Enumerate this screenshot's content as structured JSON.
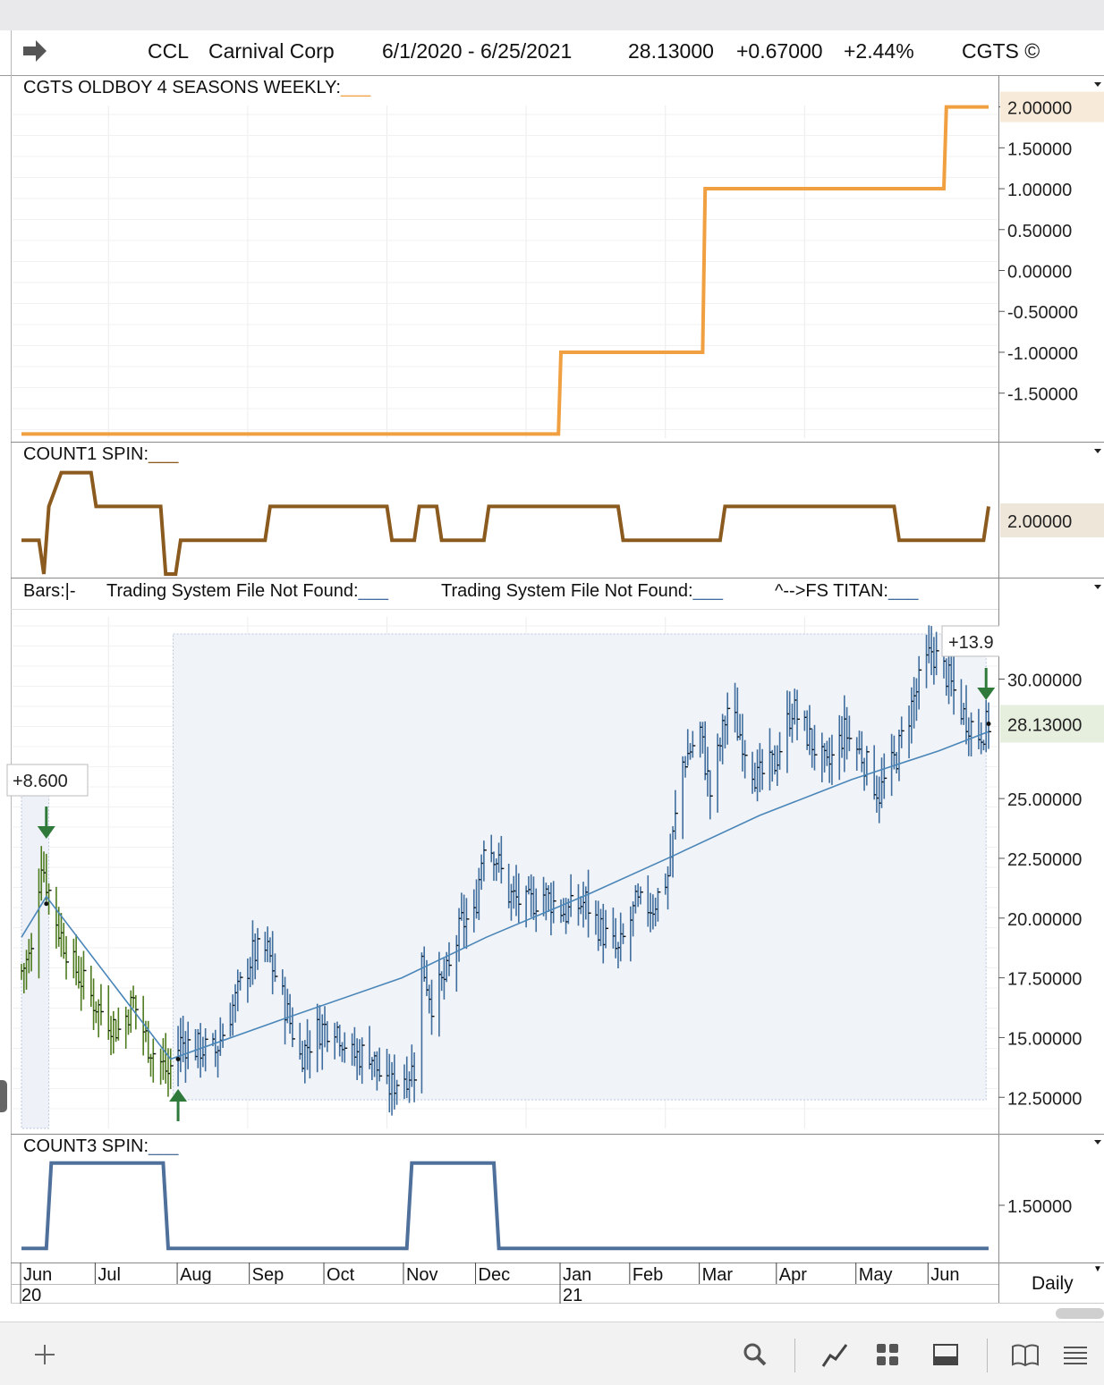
{
  "header": {
    "symbol": "CCL",
    "company": "Carnival Corp",
    "date_range": "6/1/2020 - 6/25/2021",
    "last": "28.13000",
    "change": "+0.67000",
    "change_pct": "+2.44%",
    "brand": "CGTS ©"
  },
  "panels": {
    "p1_title": "CGTS OLDBOY 4 SEASONS WEEKLY:",
    "p2_title": "COUNT1 SPIN:",
    "p3_title_bars": "Bars:|-",
    "p3_title_ts1": "Trading System File Not Found:",
    "p3_title_ts2": "Trading System File Not Found:",
    "p3_title_fs": "^-->FS TITAN:",
    "p4_title": "COUNT3 SPIN:",
    "underscore": "___"
  },
  "timeframe": "Daily",
  "colors": {
    "orange": "#F0A040",
    "brown": "#8B5A1E",
    "steel": "#4F709B",
    "bar_blue": "#3F6E9E",
    "bar_green": "#4E7B1E",
    "signal_green": "#2F7A3A",
    "ma_line": "#4A86B8"
  },
  "chart_data": [
    {
      "type": "line",
      "title": "CGTS OLDBOY 4 SEASONS WEEKLY",
      "step": true,
      "x": [
        "2020-06-01",
        "2021-01-03",
        "2021-01-04",
        "2021-03-02",
        "2021-03-03",
        "2021-06-07",
        "2021-06-08",
        "2021-06-25"
      ],
      "values": [
        -2,
        -2,
        -1,
        -1,
        1,
        1,
        2,
        2
      ],
      "ylim": [
        -2.05,
        2.05
      ],
      "yticks": [
        "2.00000",
        "1.50000",
        "1.00000",
        "0.50000",
        "0.00000",
        "-0.50000",
        "-1.00000",
        "-1.50000"
      ],
      "last_value_label": "2.00000"
    },
    {
      "type": "line",
      "title": "COUNT1 SPIN",
      "step": true,
      "points": [
        [
          "2020-06-01",
          1
        ],
        [
          "2020-06-08",
          1
        ],
        [
          "2020-06-10",
          0
        ],
        [
          "2020-06-12",
          2
        ],
        [
          "2020-06-17",
          3
        ],
        [
          "2020-06-29",
          3
        ],
        [
          "2020-07-01",
          2
        ],
        [
          "2020-07-27",
          2
        ],
        [
          "2020-07-29",
          0
        ],
        [
          "2020-08-02",
          0
        ],
        [
          "2020-08-04",
          1
        ],
        [
          "2020-09-07",
          1
        ],
        [
          "2020-09-09",
          2
        ],
        [
          "2020-10-26",
          2
        ],
        [
          "2020-10-28",
          1
        ],
        [
          "2020-11-06",
          1
        ],
        [
          "2020-11-08",
          2
        ],
        [
          "2020-11-15",
          2
        ],
        [
          "2020-11-17",
          1
        ],
        [
          "2020-12-04",
          1
        ],
        [
          "2020-12-06",
          2
        ],
        [
          "2021-01-27",
          2
        ],
        [
          "2021-01-29",
          1
        ],
        [
          "2021-03-09",
          1
        ],
        [
          "2021-03-11",
          2
        ],
        [
          "2021-05-18",
          2
        ],
        [
          "2021-05-20",
          1
        ],
        [
          "2021-06-23",
          1
        ],
        [
          "2021-06-25",
          2
        ]
      ],
      "ylim": [
        0,
        3.2
      ],
      "last_value_label": "2.00000"
    },
    {
      "type": "bar",
      "subtype": "ohlc",
      "ylim": [
        11.2,
        32.6
      ],
      "yticks": [
        "30.00000",
        "25.00000",
        "22.50000",
        "20.00000",
        "17.50000",
        "15.00000",
        "12.50000"
      ],
      "last_price_label": "28.13000",
      "annotations": [
        "+8.600",
        "+13.9"
      ],
      "x_months": [
        "Jun",
        "Jul",
        "Aug",
        "Sep",
        "Oct",
        "Nov",
        "Dec",
        "Jan",
        "Feb",
        "Mar",
        "Apr",
        "May",
        "Jun"
      ],
      "x_years": [
        "20",
        "21"
      ],
      "moving_average": [
        [
          "2020-06-01",
          19.2
        ],
        [
          "2020-06-11",
          20.9
        ],
        [
          "2020-07-31",
          14.1
        ],
        [
          "2020-09-15",
          15.8
        ],
        [
          "2020-11-01",
          17.5
        ],
        [
          "2020-12-05",
          19.2
        ],
        [
          "2021-01-15",
          21.0
        ],
        [
          "2021-02-18",
          22.6
        ],
        [
          "2021-03-25",
          24.3
        ],
        [
          "2021-05-01",
          25.8
        ],
        [
          "2021-06-05",
          27.0
        ],
        [
          "2021-06-25",
          27.8
        ]
      ],
      "price_path": [
        [
          "2020-06-01",
          17.8
        ],
        [
          "2020-06-05",
          18.5
        ],
        [
          "2020-06-09",
          22.5
        ],
        [
          "2020-06-11",
          21.5
        ],
        [
          "2020-06-16",
          19.5
        ],
        [
          "2020-06-22",
          18.0
        ],
        [
          "2020-06-30",
          16.5
        ],
        [
          "2020-07-10",
          15.3
        ],
        [
          "2020-07-16",
          16.5
        ],
        [
          "2020-07-22",
          14.7
        ],
        [
          "2020-07-30",
          13.5
        ],
        [
          "2020-08-04",
          14.8
        ],
        [
          "2020-08-10",
          14.6
        ],
        [
          "2020-08-18",
          14.4
        ],
        [
          "2020-08-25",
          16.3
        ],
        [
          "2020-09-02",
          18.5
        ],
        [
          "2020-09-08",
          18.6
        ],
        [
          "2020-09-16",
          16.0
        ],
        [
          "2020-09-21",
          14.2
        ],
        [
          "2020-09-28",
          15.3
        ],
        [
          "2020-10-05",
          15.6
        ],
        [
          "2020-10-12",
          14.2
        ],
        [
          "2020-10-19",
          14.4
        ],
        [
          "2020-10-26",
          12.8
        ],
        [
          "2020-10-30",
          13.2
        ],
        [
          "2020-11-06",
          13.7
        ],
        [
          "2020-11-09",
          18.2
        ],
        [
          "2020-11-13",
          16.5
        ],
        [
          "2020-11-20",
          17.8
        ],
        [
          "2020-11-25",
          19.8
        ],
        [
          "2020-11-30",
          20.0
        ],
        [
          "2020-12-04",
          23.3
        ],
        [
          "2020-12-08",
          22.8
        ],
        [
          "2020-12-14",
          21.0
        ],
        [
          "2020-12-21",
          20.5
        ],
        [
          "2020-12-28",
          21.0
        ],
        [
          "2021-01-06",
          20.2
        ],
        [
          "2021-01-14",
          20.7
        ],
        [
          "2021-01-20",
          19.5
        ],
        [
          "2021-01-27",
          18.5
        ],
        [
          "2021-02-03",
          20.5
        ],
        [
          "2021-02-10",
          20.5
        ],
        [
          "2021-02-16",
          21.8
        ],
        [
          "2021-02-22",
          26.5
        ],
        [
          "2021-03-01",
          27.8
        ],
        [
          "2021-03-05",
          25.2
        ],
        [
          "2021-03-12",
          28.8
        ],
        [
          "2021-03-18",
          27.5
        ],
        [
          "2021-03-24",
          25.8
        ],
        [
          "2021-03-31",
          26.5
        ],
        [
          "2021-04-07",
          28.8
        ],
        [
          "2021-04-14",
          27.5
        ],
        [
          "2021-04-21",
          26.2
        ],
        [
          "2021-04-28",
          27.8
        ],
        [
          "2021-05-05",
          26.8
        ],
        [
          "2021-05-12",
          25.2
        ],
        [
          "2021-05-19",
          26.8
        ],
        [
          "2021-05-26",
          29.2
        ],
        [
          "2021-06-02",
          31.2
        ],
        [
          "2021-06-08",
          30.2
        ],
        [
          "2021-06-15",
          28.5
        ],
        [
          "2021-06-21",
          27.7
        ],
        [
          "2021-06-25",
          28.13
        ]
      ]
    },
    {
      "type": "line",
      "title": "COUNT3 SPIN",
      "step": true,
      "points": [
        [
          "2020-06-01",
          0
        ],
        [
          "2020-06-11",
          0
        ],
        [
          "2020-06-13",
          1
        ],
        [
          "2020-07-28",
          1
        ],
        [
          "2020-07-30",
          0
        ],
        [
          "2020-11-03",
          0
        ],
        [
          "2020-11-05",
          1
        ],
        [
          "2020-12-08",
          1
        ],
        [
          "2020-12-10",
          0
        ],
        [
          "2021-06-25",
          0
        ]
      ],
      "ylim": [
        -0.05,
        1.05
      ],
      "yticks": [
        "1.50000"
      ]
    }
  ]
}
